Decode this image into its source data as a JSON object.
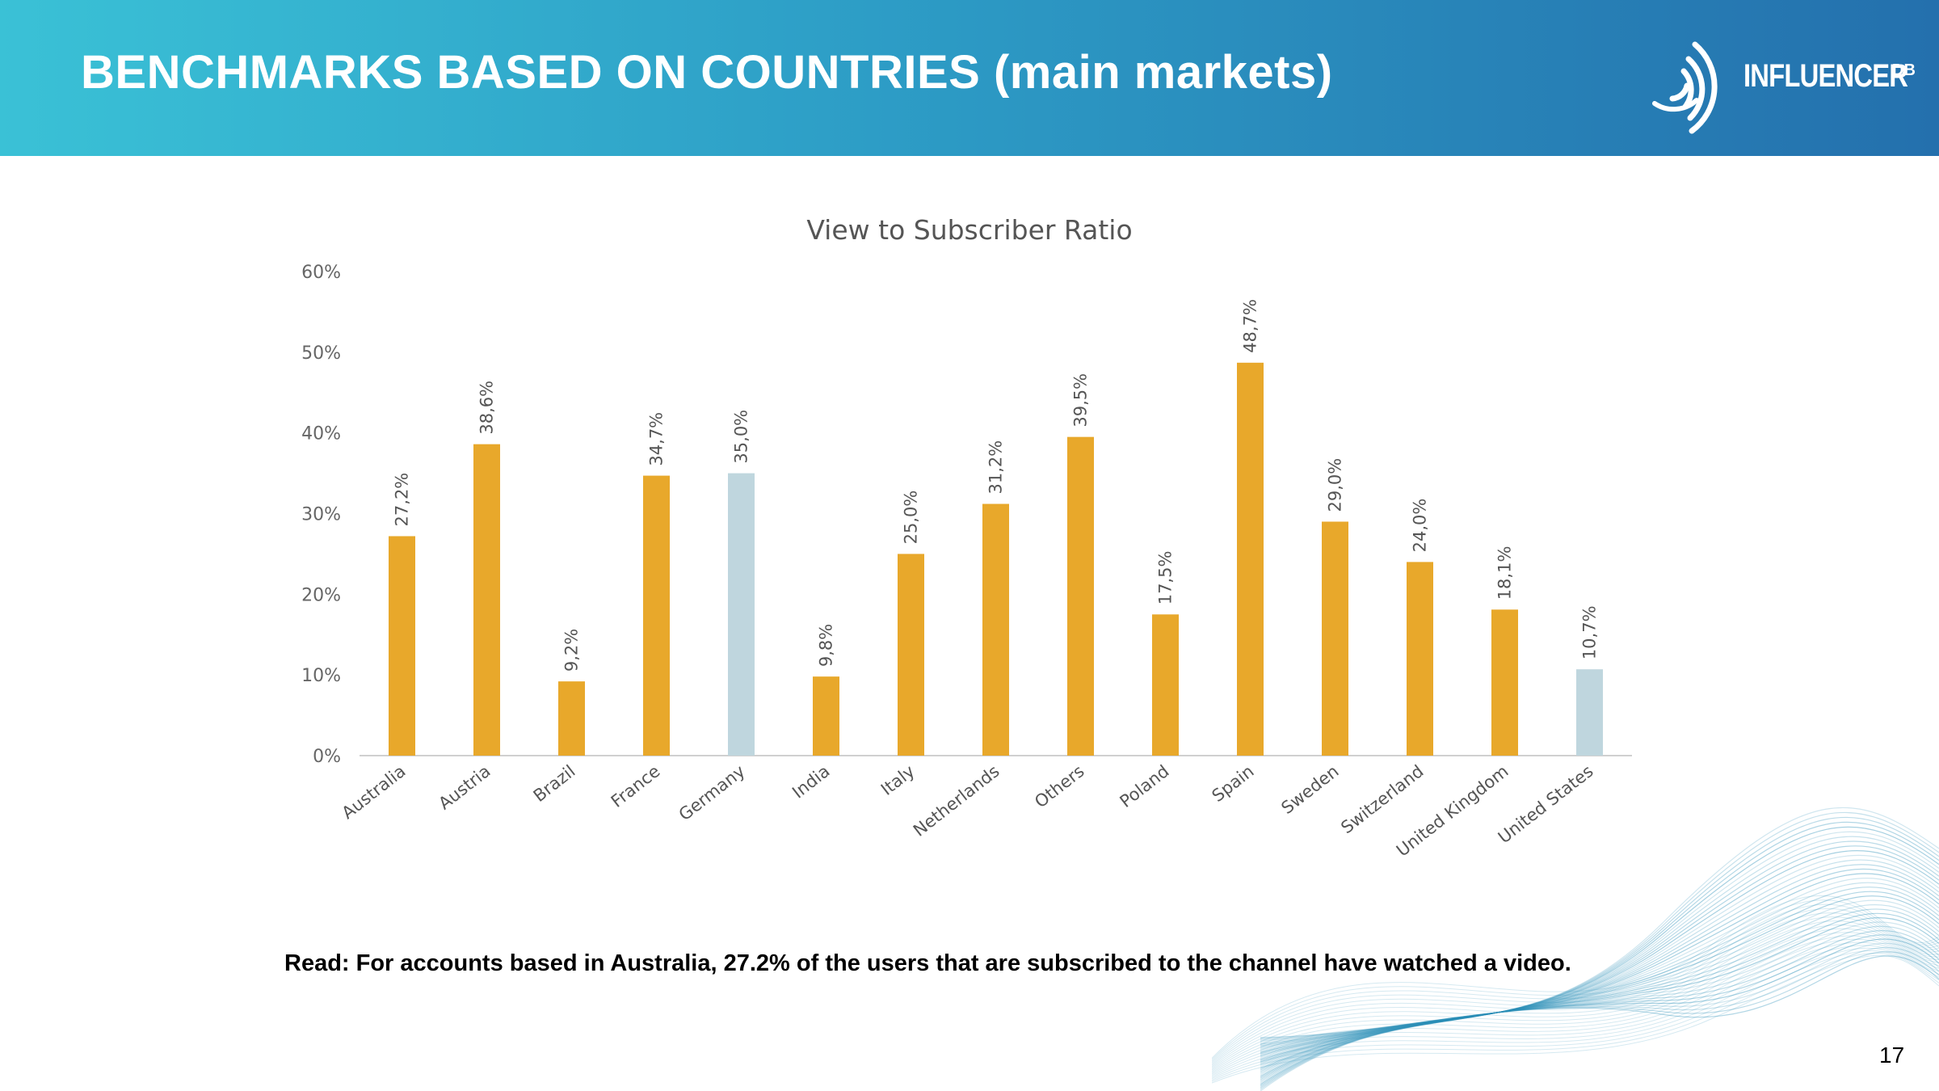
{
  "slide": {
    "title": "BENCHMARKS BASED ON COUNTRIES (main markets)",
    "logo_text": "INFLUENCER",
    "logo_superscript": "DB",
    "caption": "Read: For accounts based in Australia, 27.2% of the users that are subscribed to the channel have watched a video.",
    "page_number": "17",
    "colors": {
      "header_start": "#3ac1d6",
      "header_end": "#2470ad",
      "bar_primary": "#e8a82b",
      "bar_highlight": "#bfd6de",
      "decoration": "#2b8fb8"
    }
  },
  "chart_data": {
    "type": "bar",
    "title": "View to Subscriber Ratio",
    "xlabel": "",
    "ylabel": "",
    "categories": [
      "Australia",
      "Austria",
      "Brazil",
      "France",
      "Germany",
      "India",
      "Italy",
      "Netherlands",
      "Others",
      "Poland",
      "Spain",
      "Sweden",
      "Switzerland",
      "United Kingdom",
      "United States"
    ],
    "values": [
      27.2,
      38.6,
      9.2,
      34.7,
      35.0,
      9.8,
      25.0,
      31.2,
      39.5,
      17.5,
      48.7,
      29.0,
      24.0,
      18.1,
      10.7
    ],
    "value_labels": [
      "27,2%",
      "38,6%",
      "9,2%",
      "34,7%",
      "35,0%",
      "9,8%",
      "25,0%",
      "31,2%",
      "39,5%",
      "17,5%",
      "48,7%",
      "29,0%",
      "24,0%",
      "18,1%",
      "10,7%"
    ],
    "highlighted": [
      "Germany",
      "United States"
    ],
    "ylim": [
      0,
      60
    ],
    "yticks": [
      0,
      10,
      20,
      30,
      40,
      50,
      60
    ],
    "ytick_labels": [
      "0%",
      "10%",
      "20%",
      "30%",
      "40%",
      "50%",
      "60%"
    ],
    "grid": false,
    "legend": "none"
  }
}
